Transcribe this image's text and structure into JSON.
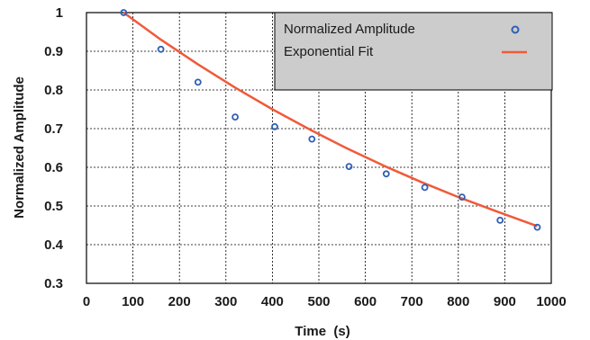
{
  "chart_data": {
    "type": "scatter",
    "title": "",
    "xlabel": "Time  (s)",
    "ylabel": "Normalized Amplitude",
    "xlim": [
      0,
      1000
    ],
    "ylim": [
      0.3,
      1.0
    ],
    "xticks": [
      "0",
      "100",
      "200",
      "300",
      "400",
      "500",
      "600",
      "700",
      "800",
      "900",
      "1000"
    ],
    "yticks": [
      "0.3",
      "0.4",
      "0.5",
      "0.6",
      "0.7",
      "0.8",
      "0.9",
      "1"
    ],
    "grid": true,
    "legend_position": "top-right",
    "series": [
      {
        "name": "Normalized Amplitude",
        "kind": "scatter",
        "marker": "open-circle",
        "color": "#2f5fb5",
        "x": [
          80,
          160,
          240,
          320,
          405,
          485,
          565,
          645,
          728,
          808,
          890,
          970
        ],
        "y": [
          1.0,
          0.905,
          0.82,
          0.73,
          0.705,
          0.673,
          0.602,
          0.583,
          0.548,
          0.523,
          0.463,
          0.445
        ]
      },
      {
        "name": "Exponential Fit",
        "kind": "line",
        "color": "#f05a3a",
        "x": [
          80,
          160,
          240,
          320,
          400,
          480,
          560,
          640,
          720,
          800,
          880,
          970
        ],
        "y": [
          1.0,
          0.93,
          0.866,
          0.806,
          0.75,
          0.698,
          0.649,
          0.604,
          0.562,
          0.523,
          0.487,
          0.448
        ]
      }
    ]
  }
}
